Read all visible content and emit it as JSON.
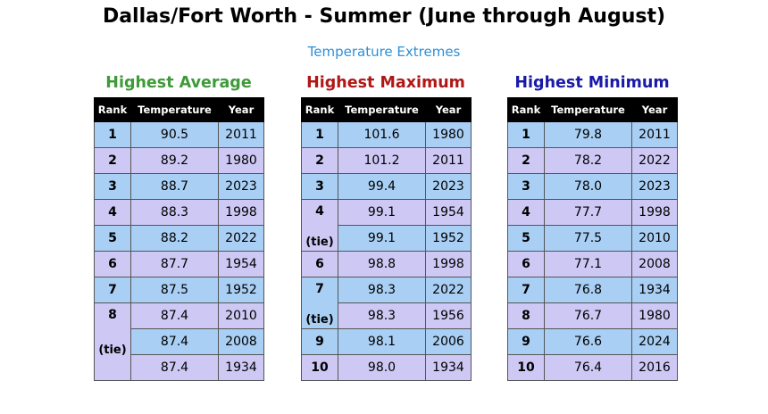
{
  "title": "Dallas/Fort Worth - Summer (June through August)",
  "subtitle": "Temperature Extremes",
  "colors": {
    "subtitle": "#2e8fd6",
    "avg_title": "#3f9a3a",
    "max_title": "#b01818",
    "min_title": "#1a1aa8",
    "row_blue": "#a9cff4",
    "row_purple": "#cdc8f4",
    "header_bg": "#000000"
  },
  "headers": {
    "rank": "Rank",
    "temperature": "Temperature",
    "year": "Year"
  },
  "tables": [
    {
      "id": "avg",
      "title": "Highest Average",
      "rows": [
        {
          "rank": "1",
          "temp": "90.5",
          "year": "2011"
        },
        {
          "rank": "2",
          "temp": "89.2",
          "year": "1980"
        },
        {
          "rank": "3",
          "temp": "88.7",
          "year": "2023"
        },
        {
          "rank": "4",
          "temp": "88.3",
          "year": "1998"
        },
        {
          "rank": "5",
          "temp": "88.2",
          "year": "2022"
        },
        {
          "rank": "6",
          "temp": "87.7",
          "year": "1954"
        },
        {
          "rank": "7",
          "temp": "87.5",
          "year": "1952"
        },
        {
          "rank": "8",
          "tie": "(tie)",
          "span": 3,
          "temp": "87.4",
          "year": "2010"
        },
        {
          "temp": "87.4",
          "year": "2008"
        },
        {
          "temp": "87.4",
          "year": "1934"
        }
      ]
    },
    {
      "id": "max",
      "title": "Highest Maximum",
      "rows": [
        {
          "rank": "1",
          "temp": "101.6",
          "year": "1980"
        },
        {
          "rank": "2",
          "temp": "101.2",
          "year": "2011"
        },
        {
          "rank": "3",
          "temp": "99.4",
          "year": "2023"
        },
        {
          "rank": "4",
          "tie": "(tie)",
          "span": 2,
          "temp": "99.1",
          "year": "1954"
        },
        {
          "temp": "99.1",
          "year": "1952"
        },
        {
          "rank": "6",
          "temp": "98.8",
          "year": "1998"
        },
        {
          "rank": "7",
          "tie": "(tie)",
          "span": 2,
          "temp": "98.3",
          "year": "2022"
        },
        {
          "temp": "98.3",
          "year": "1956"
        },
        {
          "rank": "9",
          "temp": "98.1",
          "year": "2006"
        },
        {
          "rank": "10",
          "temp": "98.0",
          "year": "1934"
        }
      ]
    },
    {
      "id": "min",
      "title": "Highest Minimum",
      "rows": [
        {
          "rank": "1",
          "temp": "79.8",
          "year": "2011"
        },
        {
          "rank": "2",
          "temp": "78.2",
          "year": "2022"
        },
        {
          "rank": "3",
          "temp": "78.0",
          "year": "2023"
        },
        {
          "rank": "4",
          "temp": "77.7",
          "year": "1998"
        },
        {
          "rank": "5",
          "temp": "77.5",
          "year": "2010"
        },
        {
          "rank": "6",
          "temp": "77.1",
          "year": "2008"
        },
        {
          "rank": "7",
          "temp": "76.8",
          "year": "1934"
        },
        {
          "rank": "8",
          "temp": "76.7",
          "year": "1980"
        },
        {
          "rank": "9",
          "temp": "76.6",
          "year": "2024"
        },
        {
          "rank": "10",
          "temp": "76.4",
          "year": "2016"
        }
      ]
    }
  ]
}
